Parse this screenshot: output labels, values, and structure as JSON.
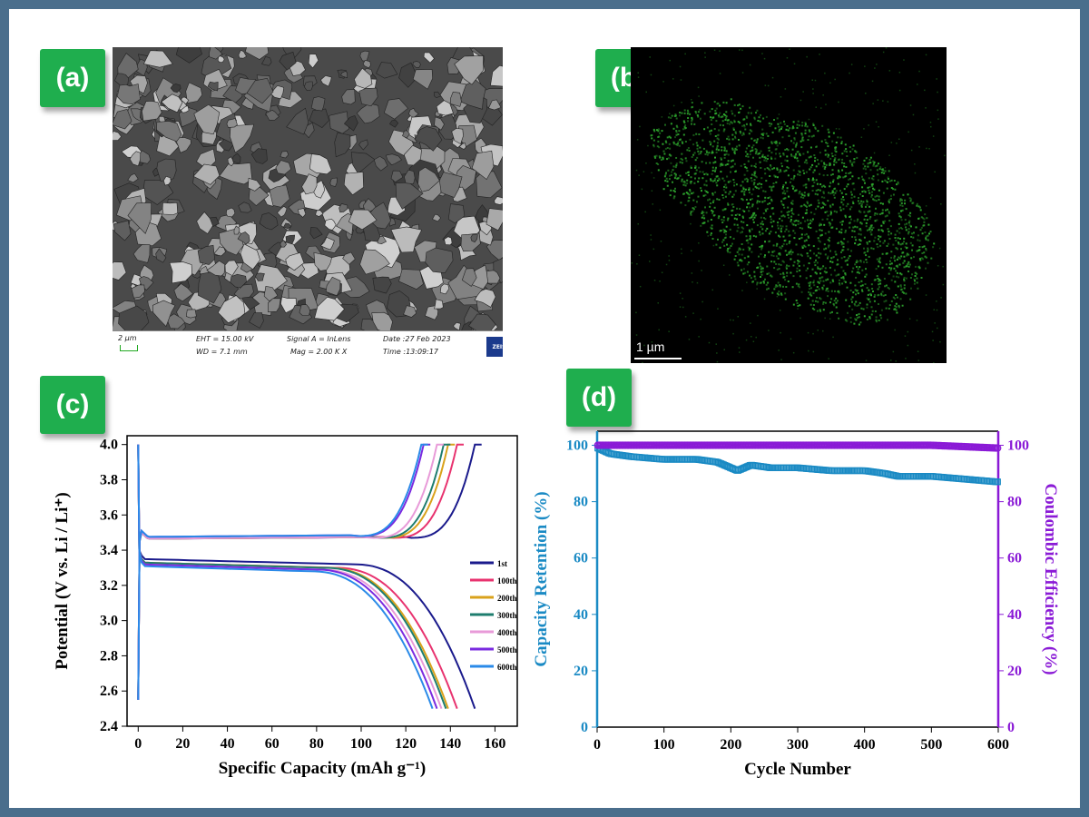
{
  "panels": {
    "a": {
      "label": "(a)"
    },
    "b": {
      "label": "(b)"
    },
    "c": {
      "label": "(c)"
    },
    "d": {
      "label": "(d)"
    }
  },
  "sem": {
    "scale_label": "2 µm",
    "eht": "EHT = 15.00 kV",
    "wd": "WD =  7.1 mm",
    "signal": "Signal A = InLens",
    "mag": "Mag =    2.00 K X",
    "date": "Date :27 Feb 2023",
    "time": "Time :13:09:17",
    "brand": "ZEISS"
  },
  "eds": {
    "scale_label": "1 µm",
    "map_color": "#2ea82e"
  },
  "chart_data": [
    {
      "type": "line",
      "panel": "c",
      "xlabel": "Specific Capacity (mAh g⁻¹)",
      "ylabel": "Potential (V vs. Li / Li⁺)",
      "xlim": [
        -5,
        170
      ],
      "ylim": [
        2.4,
        4.05
      ],
      "xticks": [
        0,
        20,
        40,
        60,
        80,
        100,
        120,
        140,
        160
      ],
      "yticks": [
        2.4,
        2.6,
        2.8,
        3.0,
        3.2,
        3.4,
        3.6,
        3.8,
        4.0
      ],
      "legend_position": "right",
      "series": [
        {
          "name": "1st",
          "color": "#1a1a8c",
          "charge_end": 151,
          "discharge_end": 151,
          "plateau_c": 3.47,
          "plateau_d": 3.35
        },
        {
          "name": "100th",
          "color": "#e8336f",
          "charge_end": 143,
          "discharge_end": 143,
          "plateau_c": 3.47,
          "plateau_d": 3.33
        },
        {
          "name": "200th",
          "color": "#d9a21b",
          "charge_end": 139,
          "discharge_end": 139,
          "plateau_c": 3.47,
          "plateau_d": 3.33
        },
        {
          "name": "300th",
          "color": "#1e7d6e",
          "charge_end": 137,
          "discharge_end": 138,
          "plateau_c": 3.47,
          "plateau_d": 3.33
        },
        {
          "name": "400th",
          "color": "#e89ad8",
          "charge_end": 134,
          "discharge_end": 136,
          "plateau_c": 3.47,
          "plateau_d": 3.32
        },
        {
          "name": "500th",
          "color": "#7a2be0",
          "charge_end": 128,
          "discharge_end": 134,
          "plateau_c": 3.48,
          "plateau_d": 3.32
        },
        {
          "name": "600th",
          "color": "#2a8ae8",
          "charge_end": 127,
          "discharge_end": 132,
          "plateau_c": 3.48,
          "plateau_d": 3.31
        }
      ]
    },
    {
      "type": "scatter",
      "panel": "d",
      "xlabel": "Cycle Number",
      "ylabel_left": "Capacity Retention (%)",
      "ylabel_right": "Coulombic Efficiency (%)",
      "xlim": [
        0,
        600
      ],
      "ylim": [
        0,
        105
      ],
      "xticks": [
        0,
        100,
        200,
        300,
        400,
        500,
        600
      ],
      "yticks": [
        0,
        20,
        40,
        60,
        80,
        100
      ],
      "series": [
        {
          "name": "Capacity Retention (%)",
          "color": "#1a8ac4",
          "x": [
            1,
            20,
            50,
            100,
            150,
            180,
            200,
            210,
            230,
            260,
            300,
            350,
            400,
            430,
            450,
            500,
            550,
            600
          ],
          "y": [
            99,
            97,
            96,
            95,
            95,
            94,
            92,
            91,
            93,
            92,
            92,
            91,
            91,
            90,
            89,
            89,
            88,
            87
          ]
        },
        {
          "name": "Coulombic Efficiency (%)",
          "color": "#8a1ad6",
          "x": [
            1,
            50,
            100,
            200,
            300,
            400,
            500,
            550,
            600
          ],
          "y": [
            100,
            100,
            100,
            100,
            100,
            100,
            100,
            99.5,
            99
          ]
        }
      ]
    }
  ]
}
